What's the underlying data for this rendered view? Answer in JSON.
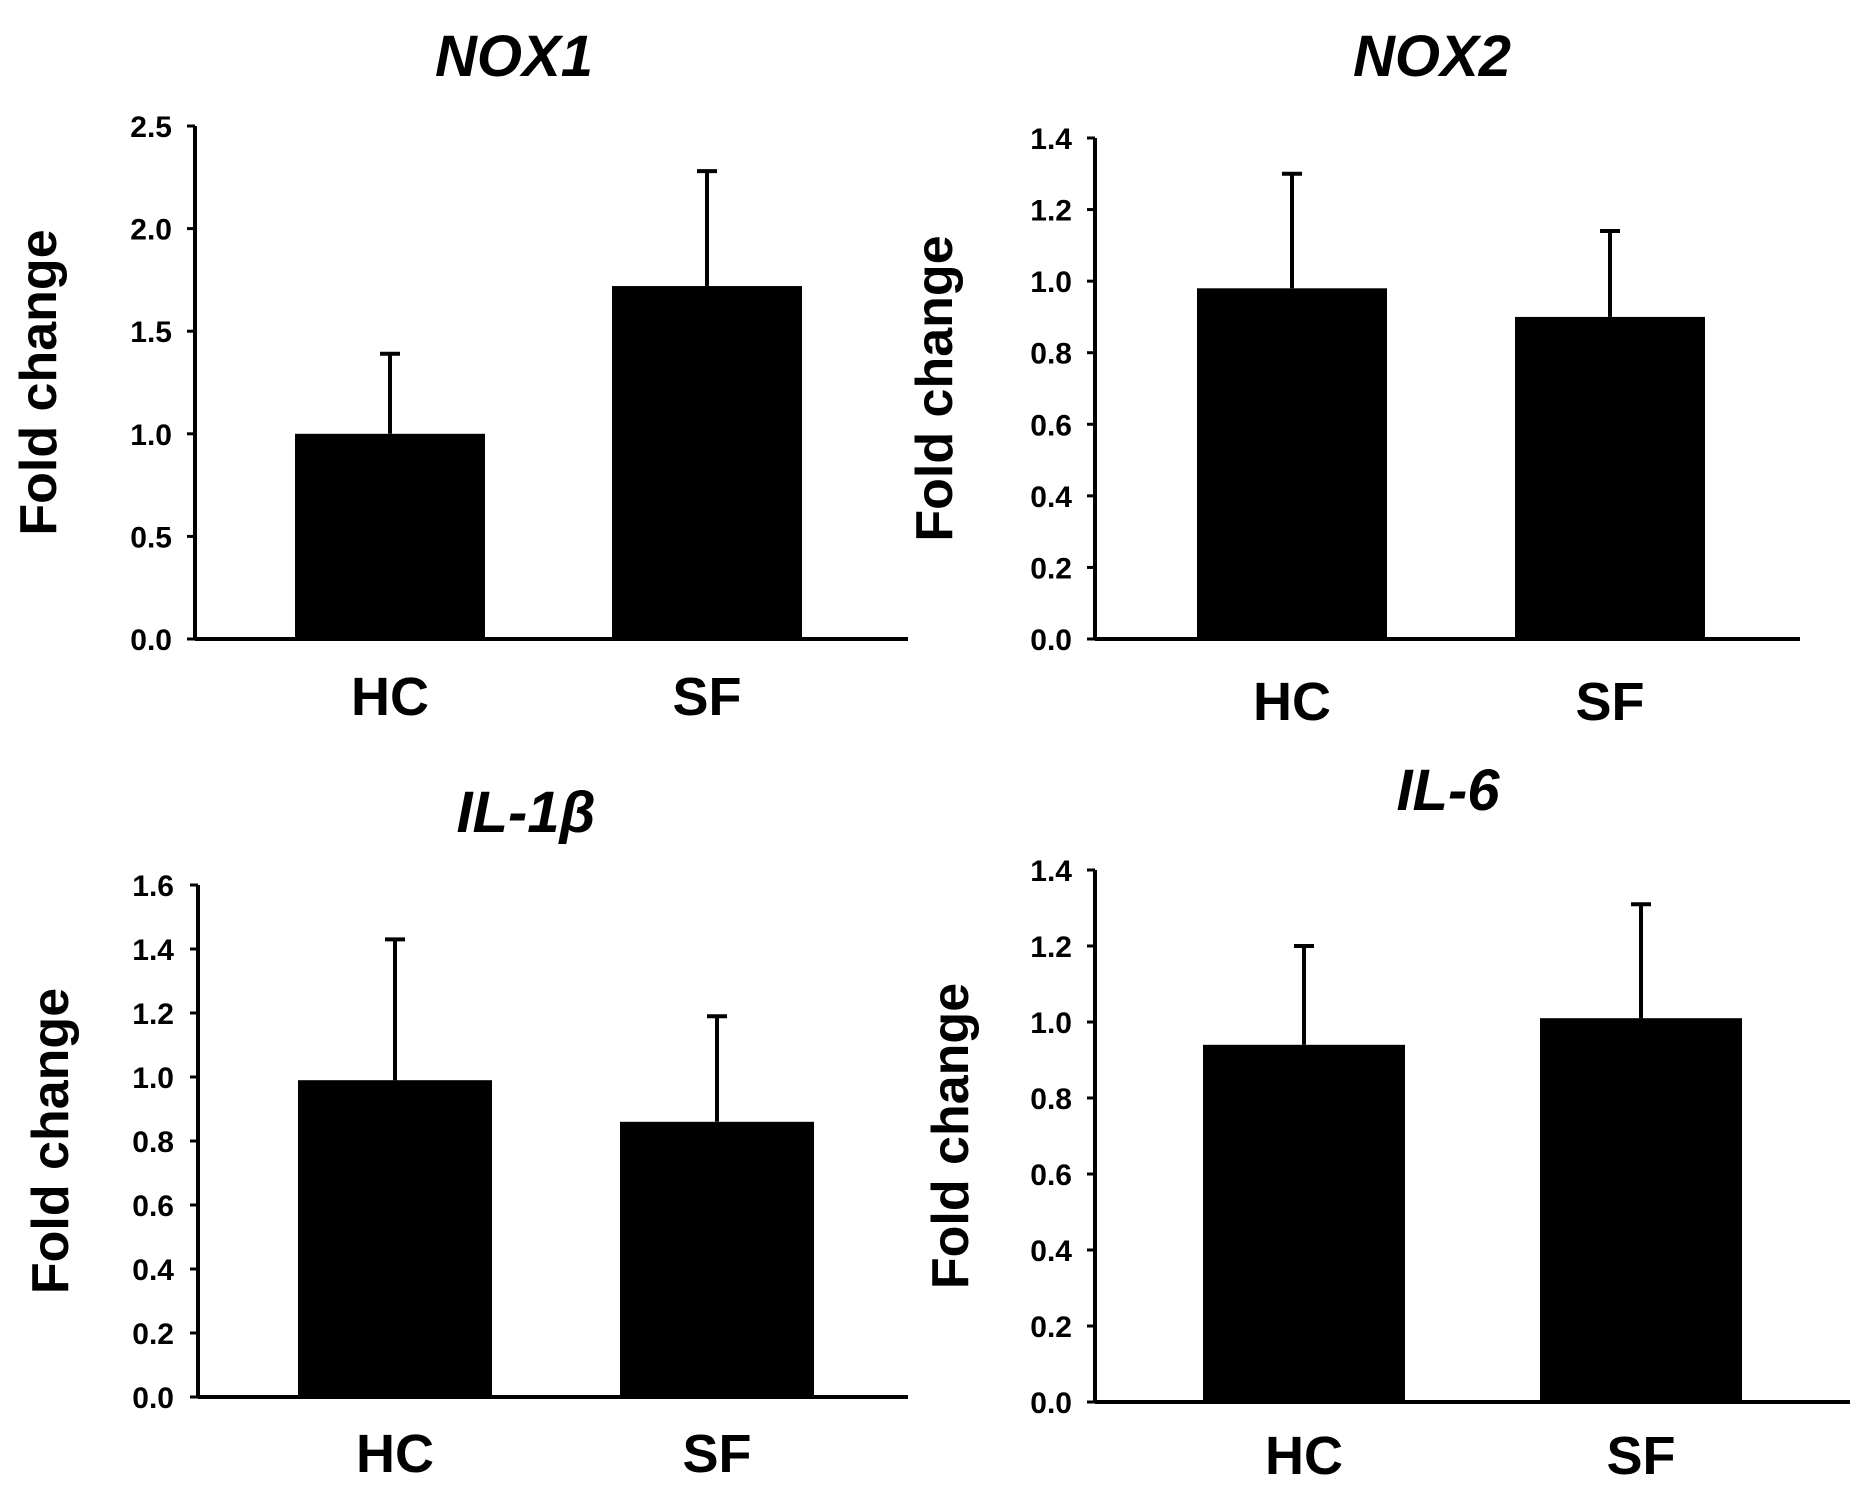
{
  "chart_data": [
    {
      "type": "bar",
      "title": "NOX1",
      "categories": [
        "HC",
        "SF"
      ],
      "values": [
        1.0,
        1.72
      ],
      "errors": [
        0.39,
        0.56
      ],
      "ylabel": "Fold change",
      "xlabel": "",
      "ylim": [
        0,
        2.5
      ],
      "yticks": [
        "0.0",
        "0.5",
        "1.0",
        "1.5",
        "2.0",
        "2.5"
      ],
      "bar_color": "#000000",
      "grid": false
    },
    {
      "type": "bar",
      "title": "NOX2",
      "categories": [
        "HC",
        "SF"
      ],
      "values": [
        0.98,
        0.9
      ],
      "errors": [
        0.32,
        0.24
      ],
      "ylabel": "Fold change",
      "xlabel": "",
      "ylim": [
        0,
        1.4
      ],
      "yticks": [
        "0.0",
        "0.2",
        "0.4",
        "0.6",
        "0.8",
        "1.0",
        "1.2",
        "1.4"
      ],
      "bar_color": "#000000",
      "grid": false
    },
    {
      "type": "bar",
      "title": "IL-1β",
      "categories": [
        "HC",
        "SF"
      ],
      "values": [
        0.99,
        0.86
      ],
      "errors": [
        0.44,
        0.33
      ],
      "ylabel": "Fold change",
      "xlabel": "",
      "ylim": [
        0,
        1.6
      ],
      "yticks": [
        "0.0",
        "0.2",
        "0.4",
        "0.6",
        "0.8",
        "1.0",
        "1.2",
        "1.4",
        "1.6"
      ],
      "bar_color": "#000000",
      "grid": false
    },
    {
      "type": "bar",
      "title": "IL-6",
      "categories": [
        "HC",
        "SF"
      ],
      "values": [
        0.94,
        1.01
      ],
      "errors": [
        0.26,
        0.3
      ],
      "ylabel": "Fold change",
      "xlabel": "",
      "ylim": [
        0,
        1.4
      ],
      "yticks": [
        "0.0",
        "0.2",
        "0.4",
        "0.6",
        "0.8",
        "1.0",
        "1.2",
        "1.4"
      ],
      "bar_color": "#000000",
      "grid": false
    }
  ]
}
